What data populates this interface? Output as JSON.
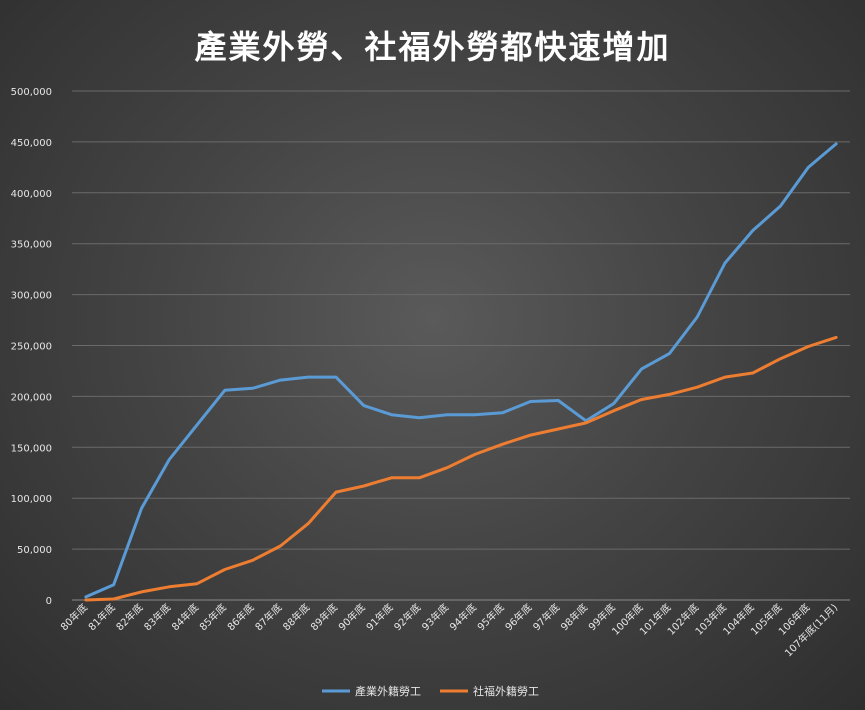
{
  "chart_data": {
    "type": "line",
    "title": "產業外勞、社福外勞都快速增加",
    "categories": [
      "80年底",
      "81年底",
      "82年底",
      "83年底",
      "84年底",
      "85年底",
      "86年底",
      "87年底",
      "88年底",
      "89年底",
      "90年底",
      "91年底",
      "92年底",
      "93年底",
      "94年底",
      "95年底",
      "96年底",
      "97年底",
      "98年底",
      "99年底",
      "100年底",
      "101年底",
      "102年底",
      "103年底",
      "104年底",
      "105年底",
      "106年底",
      "107年底(11月)"
    ],
    "series": [
      {
        "name": "產業外籍勞工",
        "color": "#5b9bd5",
        "values": [
          2999,
          15000,
          90000,
          138000,
          172000,
          206000,
          208000,
          216000,
          219000,
          219000,
          191000,
          182000,
          179000,
          182000,
          182000,
          184000,
          195000,
          196000,
          176000,
          193000,
          227000,
          242000,
          278000,
          331000,
          363000,
          387000,
          425000,
          448000
        ]
      },
      {
        "name": "社福外籍勞工",
        "color": "#ed7d31",
        "values": [
          0,
          1000,
          8000,
          13000,
          16000,
          30000,
          39000,
          53000,
          75000,
          106000,
          112000,
          120000,
          120000,
          130000,
          143000,
          153000,
          162000,
          168000,
          174000,
          186000,
          197000,
          202000,
          209000,
          219000,
          223000,
          237000,
          249000,
          258000
        ]
      }
    ],
    "ylim": [
      0,
      500000
    ],
    "yticks": [
      "0",
      "50,000",
      "100,000",
      "150,000",
      "200,000",
      "250,000",
      "300,000",
      "350,000",
      "400,000",
      "450,000",
      "500,000"
    ],
    "grid": true,
    "legend_position": "bottom"
  }
}
